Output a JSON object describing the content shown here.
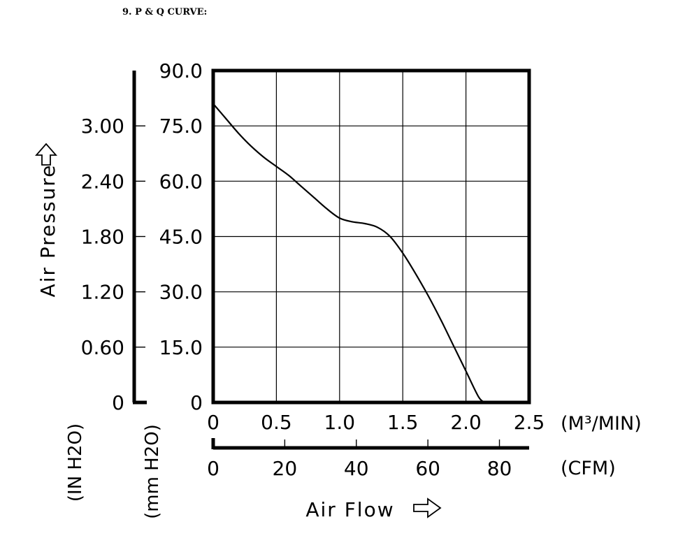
{
  "heading": "9. P & Q CURVE:",
  "chart_data": {
    "type": "line",
    "title": "",
    "ylabel": "Air Pressure",
    "xlabel": "Air Flow",
    "y_axes": {
      "inner": {
        "unit": "(mm H2O)",
        "ticks": [
          "0",
          "15.0",
          "30.0",
          "45.0",
          "60.0",
          "75.0",
          "90.0"
        ],
        "ylim": [
          0,
          90
        ]
      },
      "outer": {
        "unit": "(IN H2O)",
        "ticks": [
          "0",
          "0.60",
          "1.20",
          "1.80",
          "2.40",
          "3.00"
        ],
        "ylim": [
          0,
          3.6
        ]
      }
    },
    "x_axes": {
      "primary": {
        "unit": "(M³/MIN)",
        "ticks": [
          "0",
          "0.5",
          "1.0",
          "1.5",
          "2.0",
          "2.5"
        ],
        "xlim": [
          0,
          2.5
        ]
      },
      "secondary": {
        "unit": "(CFM)",
        "ticks": [
          "0",
          "20",
          "40",
          "60",
          "80"
        ],
        "xlim": [
          0,
          88.3
        ]
      }
    },
    "grid": true,
    "series": [
      {
        "x": [
          0,
          0.1,
          0.2,
          0.3,
          0.4,
          0.5,
          0.6,
          0.7,
          0.8,
          0.9,
          1.0,
          1.1,
          1.2,
          1.3,
          1.4,
          1.5,
          1.6,
          1.7,
          1.8,
          1.9,
          2.0,
          2.1,
          2.15
        ],
        "y": [
          81,
          77,
          73,
          69.5,
          66.5,
          64,
          61.5,
          58.5,
          55.5,
          52.5,
          50,
          49,
          48.5,
          47.5,
          45,
          40.5,
          35,
          29,
          22.5,
          15.5,
          8.5,
          1.5,
          0
        ]
      }
    ]
  }
}
